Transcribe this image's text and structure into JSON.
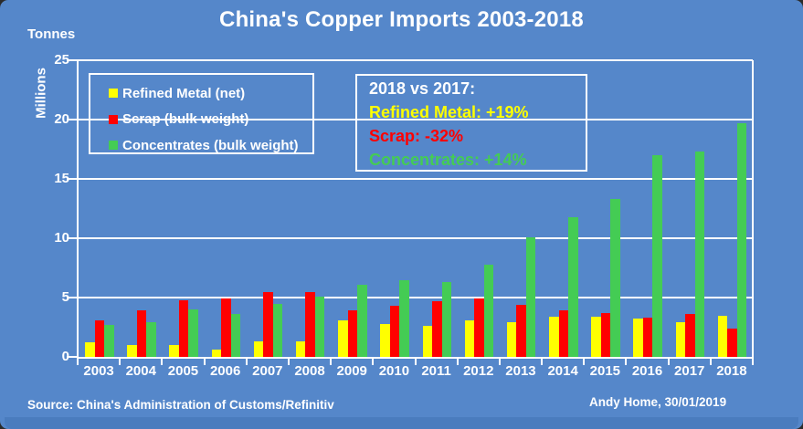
{
  "title": "China's Copper Imports 2003-2018",
  "axis_unit_label": "Tonnes",
  "colors": {
    "background": "#5587CA",
    "footer_bar": "#4A7CBE",
    "axis": "#FFFFFF",
    "refined": "#FFFF00",
    "scrap": "#FF0000",
    "concentrates": "#44CC54"
  },
  "legend": {
    "items": [
      {
        "label": "Refined Metal (net)",
        "color": "#FFFF00"
      },
      {
        "label": "Scrap (bulk weight)",
        "color": "#FF0000"
      },
      {
        "label": "Concentrates (bulk weight)",
        "color": "#44CC54"
      }
    ]
  },
  "annotation": {
    "title": "2018 vs 2017:",
    "lines": [
      {
        "text": "Refined Metal: +19%",
        "color": "#FFFF00"
      },
      {
        "text": "Scrap: -32%",
        "color": "#FF0000"
      },
      {
        "text": "Concentrates: +14%",
        "color": "#44CC54"
      }
    ]
  },
  "footer": {
    "source": "Source: China's Administration of Customs/Refinitiv",
    "attribution": "Andy Home, 30/01/2019"
  },
  "chart_data": {
    "type": "bar",
    "title": "China's Copper Imports 2003-2018",
    "xlabel": "",
    "ylabel": "Millions",
    "y_unit": "Tonnes",
    "ylim": [
      0,
      25
    ],
    "ytick_interval": 5,
    "grid": true,
    "legend_position": "upper-left",
    "categories": [
      "2003",
      "2004",
      "2005",
      "2006",
      "2007",
      "2008",
      "2009",
      "2010",
      "2011",
      "2012",
      "2013",
      "2014",
      "2015",
      "2016",
      "2017",
      "2018"
    ],
    "series": [
      {
        "name": "Refined Metal (net)",
        "color": "#FFFF00",
        "values": [
          1.2,
          1.0,
          1.0,
          0.6,
          1.3,
          1.3,
          3.1,
          2.8,
          2.6,
          3.1,
          2.9,
          3.4,
          3.4,
          3.2,
          2.9,
          3.5
        ]
      },
      {
        "name": "Scrap (bulk weight)",
        "color": "#FF0000",
        "values": [
          3.1,
          3.9,
          4.8,
          4.9,
          5.5,
          5.5,
          3.9,
          4.3,
          4.7,
          4.9,
          4.4,
          3.9,
          3.7,
          3.3,
          3.6,
          2.4
        ]
      },
      {
        "name": "Concentrates (bulk weight)",
        "color": "#44CC54",
        "values": [
          2.7,
          2.9,
          4.0,
          3.6,
          4.5,
          5.1,
          6.1,
          6.5,
          6.3,
          7.8,
          10.1,
          11.8,
          13.3,
          17.0,
          17.3,
          19.7
        ]
      }
    ]
  }
}
